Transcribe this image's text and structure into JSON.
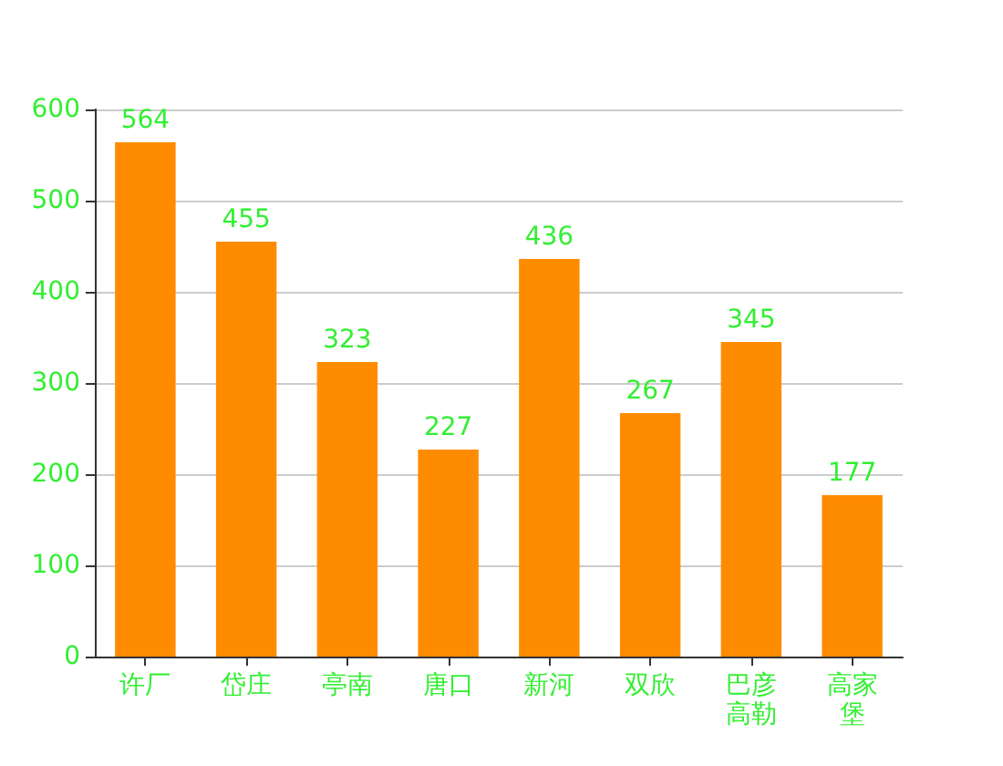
{
  "chart_data": {
    "type": "bar",
    "categories": [
      "许厂",
      "岱庄",
      "亭南",
      "唐口",
      "新河",
      "双欣",
      "巴彦高勒",
      "高家堡"
    ],
    "values": [
      564,
      455,
      323,
      227,
      436,
      267,
      345,
      177
    ],
    "color": "#ff8c00",
    "ylim": [
      0,
      600
    ],
    "yticks": [
      0,
      100,
      200,
      300,
      400,
      500,
      600
    ],
    "grid": "y",
    "data_labels": true
  }
}
